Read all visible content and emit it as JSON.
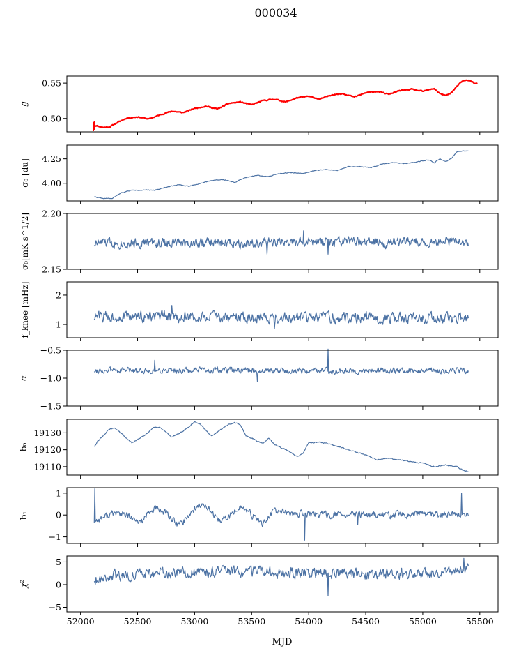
{
  "figure": {
    "title": "000034",
    "xlabel": "MJD",
    "series_color": "#4c72a4",
    "overlay_color": "#ff0000"
  },
  "chart_data": [
    {
      "type": "line",
      "id": "g",
      "ylabel": "g",
      "ylabel_math": "italic",
      "xlim": [
        51880,
        55660
      ],
      "ylim": [
        0.481,
        0.56
      ],
      "yticks": [
        0.5,
        0.55
      ],
      "ytick_labels": [
        "0.50",
        "0.55"
      ],
      "trend": {
        "x": [
          52120,
          52150,
          52200,
          52260,
          52300,
          52400,
          52500,
          52600,
          52700,
          52800,
          52900,
          53000,
          53100,
          53200,
          53300,
          53400,
          53500,
          53600,
          53700,
          53800,
          53900,
          54000,
          54100,
          54200,
          54300,
          54400,
          54500,
          54600,
          54700,
          54800,
          54900,
          55000,
          55100,
          55150,
          55200,
          55250,
          55300,
          55350,
          55400,
          55450,
          55480
        ],
        "y": [
          0.49,
          0.489,
          0.487,
          0.488,
          0.492,
          0.5,
          0.502,
          0.499,
          0.505,
          0.51,
          0.508,
          0.514,
          0.517,
          0.513,
          0.521,
          0.523,
          0.519,
          0.525,
          0.527,
          0.523,
          0.529,
          0.531,
          0.527,
          0.533,
          0.535,
          0.53,
          0.536,
          0.538,
          0.534,
          0.539,
          0.541,
          0.538,
          0.542,
          0.535,
          0.532,
          0.536,
          0.545,
          0.553,
          0.554,
          0.55,
          0.549
        ]
      },
      "wiggle": {
        "amp": 0.0006,
        "seed": 11
      },
      "overlay": {
        "x_start": 52100,
        "x_end": 55480,
        "offset": 0.0003
      },
      "annotation": "red model curve overlaid on data"
    },
    {
      "type": "line",
      "id": "sigma0_du",
      "ylabel": "σ₀ [du]",
      "xlim": [
        51880,
        55660
      ],
      "ylim": [
        3.82,
        4.39
      ],
      "yticks": [
        4.0,
        4.25
      ],
      "ytick_labels": [
        "4.00",
        "4.25"
      ],
      "trend": {
        "x": [
          52120,
          52150,
          52200,
          52280,
          52350,
          52450,
          52550,
          52650,
          52750,
          52850,
          52950,
          53050,
          53150,
          53250,
          53350,
          53450,
          53550,
          53650,
          53750,
          53850,
          53950,
          54050,
          54150,
          54250,
          54350,
          54450,
          54550,
          54650,
          54750,
          54850,
          54950,
          55050,
          55100,
          55150,
          55200,
          55250,
          55300,
          55350,
          55400
        ],
        "y": [
          3.865,
          3.855,
          3.845,
          3.845,
          3.9,
          3.93,
          3.93,
          3.93,
          3.96,
          3.985,
          3.97,
          4.0,
          4.03,
          4.04,
          4.01,
          4.06,
          4.08,
          4.07,
          4.1,
          4.11,
          4.1,
          4.13,
          4.14,
          4.13,
          4.17,
          4.17,
          4.16,
          4.2,
          4.21,
          4.2,
          4.22,
          4.24,
          4.21,
          4.25,
          4.22,
          4.25,
          4.32,
          4.33,
          4.33
        ]
      },
      "wiggle": {
        "amp": 0.003,
        "seed": 22
      }
    },
    {
      "type": "line",
      "id": "sigma0_mk",
      "ylabel": "σ₀[mK s^1/2]",
      "xlim": [
        51880,
        55660
      ],
      "ylim": [
        2.15,
        2.2
      ],
      "yticks": [
        2.15,
        2.2
      ],
      "ytick_labels": [
        "2.15",
        "2.20"
      ],
      "trend": {
        "x": [
          52120,
          55400
        ],
        "y": [
          2.1735,
          2.1745
        ]
      },
      "wiggle": {
        "amp": 0.0038,
        "seed": 33,
        "spikes": [
          [
            53955,
            0.1845
          ],
          [
            54170,
            0.1635
          ],
          [
            53635,
            0.1635
          ]
        ]
      }
    },
    {
      "type": "line",
      "id": "fknee",
      "ylabel": "f_knee [mHz]",
      "xlim": [
        51880,
        55660
      ],
      "ylim": [
        0.55,
        2.45
      ],
      "yticks": [
        1,
        2
      ],
      "ytick_labels": [
        "1",
        "2"
      ],
      "trend": {
        "x": [
          52120,
          55400
        ],
        "y": [
          1.27,
          1.2
        ]
      },
      "wiggle": {
        "amp": 0.16,
        "seed": 44,
        "spikes": [
          [
            53700,
            0.85
          ],
          [
            52800,
            1.65
          ]
        ]
      }
    },
    {
      "type": "line",
      "id": "alpha",
      "ylabel": "α",
      "xlim": [
        51880,
        55660
      ],
      "ylim": [
        -1.5,
        -0.5
      ],
      "yticks": [
        -1.5,
        -1.0,
        -0.5
      ],
      "ytick_labels": [
        "−1.5",
        "−1.0",
        "−0.5"
      ],
      "trend": {
        "x": [
          52120,
          55400
        ],
        "y": [
          -0.86,
          -0.87
        ]
      },
      "wiggle": {
        "amp": 0.045,
        "seed": 55,
        "spikes": [
          [
            54170,
            -0.48
          ],
          [
            52650,
            -0.68
          ],
          [
            53550,
            -1.06
          ]
        ]
      }
    },
    {
      "type": "line",
      "id": "b0",
      "ylabel": "b₀",
      "xlim": [
        51880,
        55660
      ],
      "ylim": [
        19105,
        19138
      ],
      "yticks": [
        19110,
        19120,
        19130
      ],
      "ytick_labels": [
        "19110",
        "19120",
        "19130"
      ],
      "trend": {
        "x": [
          52120,
          52150,
          52250,
          52300,
          52350,
          52450,
          52550,
          52650,
          52700,
          52800,
          52900,
          53000,
          53050,
          53150,
          53250,
          53300,
          53350,
          53400,
          53450,
          53500,
          53550,
          53600,
          53650,
          53700,
          53800,
          53900,
          53950,
          54000,
          54100,
          54200,
          54300,
          54400,
          54500,
          54600,
          54700,
          54800,
          54900,
          55000,
          55100,
          55200,
          55300,
          55350,
          55400
        ],
        "y": [
          19122,
          19125,
          19132,
          19133,
          19130,
          19124,
          19128,
          19133.5,
          19133,
          19127.5,
          19131,
          19136.5,
          19135,
          19128,
          19133,
          19135,
          19136,
          19135,
          19128,
          19127,
          19125,
          19124,
          19127,
          19123,
          19120,
          19116,
          19118,
          19124,
          19124.5,
          19123,
          19121,
          19119,
          19117,
          19114,
          19115,
          19114,
          19113,
          19112,
          19110,
          19111,
          19110,
          19108,
          19107
        ]
      },
      "wiggle": {
        "amp": 0.25,
        "seed": 66
      }
    },
    {
      "type": "line",
      "id": "b1",
      "ylabel": "b₁",
      "xlim": [
        51880,
        55660
      ],
      "ylim": [
        -1.3,
        1.25
      ],
      "yticks": [
        -1,
        0,
        1
      ],
      "ytick_labels": [
        "−1",
        "0",
        "1"
      ],
      "trend": {
        "x": [
          52120,
          52200,
          52300,
          52400,
          52500,
          52550,
          52650,
          52750,
          52850,
          52900,
          53000,
          53100,
          53200,
          53300,
          53400,
          53500,
          53600,
          53700,
          53800,
          53900,
          54000,
          54200,
          54400,
          54600,
          54800,
          55000,
          55200,
          55400
        ],
        "y": [
          -0.3,
          -0.1,
          0.1,
          0.0,
          -0.35,
          -0.2,
          0.3,
          0.1,
          -0.45,
          -0.3,
          0.3,
          0.5,
          -0.3,
          -0.1,
          0.4,
          0.0,
          -0.4,
          0.2,
          0.1,
          0.05,
          0.05,
          0.0,
          0.0,
          0.0,
          0.0,
          0.05,
          0.0,
          0.0
        ]
      },
      "wiggle": {
        "amp": 0.13,
        "seed": 77,
        "spikes": [
          [
            52125,
            1.2
          ],
          [
            53965,
            -1.15
          ],
          [
            55340,
            1.0
          ],
          [
            54430,
            -0.45
          ]
        ]
      }
    },
    {
      "type": "line",
      "id": "chi2",
      "ylabel": "χ²",
      "xlim": [
        51880,
        55660
      ],
      "ylim": [
        -6,
        6.3
      ],
      "yticks": [
        -5,
        0,
        5
      ],
      "ytick_labels": [
        "−5",
        "0",
        "5"
      ],
      "trend": {
        "x": [
          52120,
          52300,
          52600,
          53000,
          53400,
          53800,
          54200,
          54600,
          55000,
          55300,
          55400
        ],
        "y": [
          1.2,
          2.0,
          2.4,
          2.6,
          2.8,
          2.6,
          2.4,
          2.2,
          2.6,
          3.0,
          3.5
        ]
      },
      "wiggle": {
        "amp": 1.0,
        "seed": 88,
        "spikes": [
          [
            54170,
            -2.5
          ],
          [
            55360,
            5.8
          ]
        ]
      },
      "xticks": [
        52000,
        52500,
        53000,
        53500,
        54000,
        54500,
        55000,
        55500
      ],
      "xtick_labels": [
        "52000",
        "52500",
        "53000",
        "53500",
        "54000",
        "54500",
        "55000",
        "55500"
      ]
    }
  ]
}
